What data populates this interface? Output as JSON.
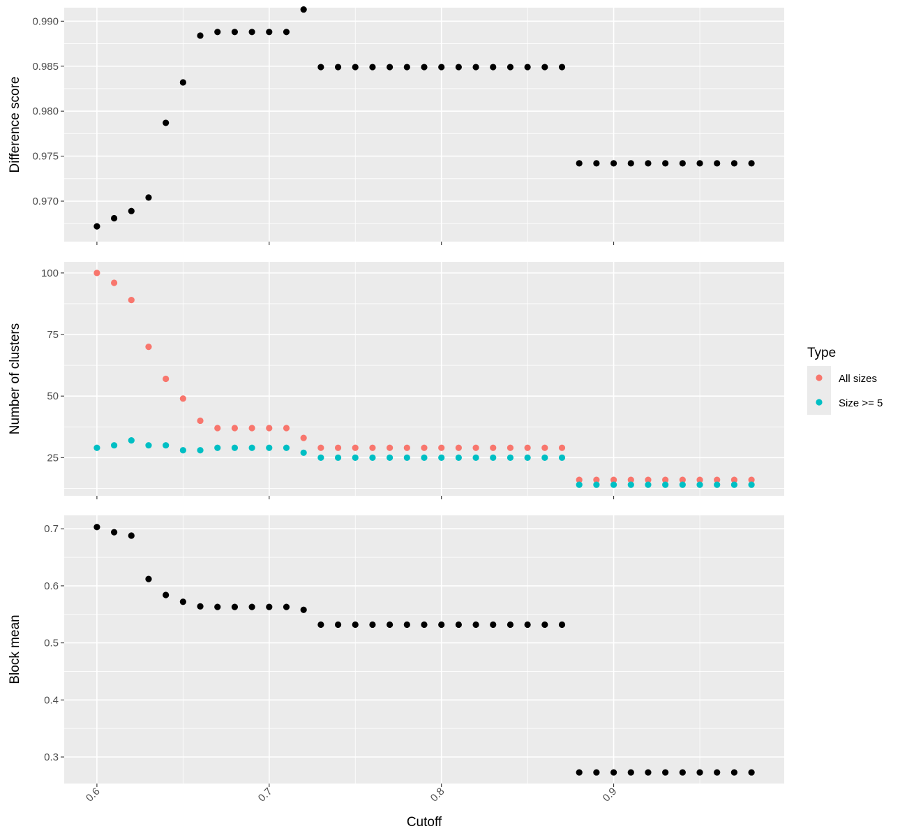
{
  "chart_data": [
    {
      "type": "scatter",
      "ylabel": "Difference score",
      "ylim": [
        0.9655,
        0.9915
      ],
      "yticks": [
        "0.970",
        "0.975",
        "0.980",
        "0.985",
        "0.990"
      ],
      "xlim": [
        0.581,
        0.999
      ],
      "x_minor_grid": true,
      "y_minor_grid": true,
      "series": [
        {
          "color": "#000000",
          "x": [
            0.6,
            0.61,
            0.62,
            0.63,
            0.64,
            0.65,
            0.66,
            0.67,
            0.68,
            0.69,
            0.7,
            0.71,
            0.72,
            0.73,
            0.74,
            0.75,
            0.76,
            0.77,
            0.78,
            0.79,
            0.8,
            0.81,
            0.82,
            0.83,
            0.84,
            0.85,
            0.86,
            0.87,
            0.88,
            0.89,
            0.9,
            0.91,
            0.92,
            0.93,
            0.94,
            0.95,
            0.96,
            0.97,
            0.98
          ],
          "y": [
            0.9672,
            0.9681,
            0.9689,
            0.9704,
            0.9787,
            0.9832,
            0.9884,
            0.9888,
            0.9888,
            0.9888,
            0.9888,
            0.9888,
            0.9913,
            0.9849,
            0.9849,
            0.9849,
            0.9849,
            0.9849,
            0.9849,
            0.9849,
            0.9849,
            0.9849,
            0.9849,
            0.9849,
            0.9849,
            0.9849,
            0.9849,
            0.9849,
            0.9742,
            0.9742,
            0.9742,
            0.9742,
            0.9742,
            0.9742,
            0.9742,
            0.9742,
            0.9742,
            0.9742,
            0.9742
          ]
        }
      ]
    },
    {
      "type": "scatter",
      "ylabel": "Number of clusters",
      "ylim": [
        9.5,
        104.5
      ],
      "yticks": [
        "25",
        "50",
        "75",
        "100"
      ],
      "xlim": [
        0.581,
        0.999
      ],
      "x_minor_grid": true,
      "y_minor_grid": true,
      "series": [
        {
          "name": "All sizes",
          "color": "#F8766D",
          "x": [
            0.6,
            0.61,
            0.62,
            0.63,
            0.64,
            0.65,
            0.66,
            0.67,
            0.68,
            0.69,
            0.7,
            0.71,
            0.72,
            0.73,
            0.74,
            0.75,
            0.76,
            0.77,
            0.78,
            0.79,
            0.8,
            0.81,
            0.82,
            0.83,
            0.84,
            0.85,
            0.86,
            0.87,
            0.88,
            0.89,
            0.9,
            0.91,
            0.92,
            0.93,
            0.94,
            0.95,
            0.96,
            0.97,
            0.98
          ],
          "y": [
            100,
            96,
            89,
            70,
            57,
            49,
            40,
            37,
            37,
            37,
            37,
            37,
            33,
            29,
            29,
            29,
            29,
            29,
            29,
            29,
            29,
            29,
            29,
            29,
            29,
            29,
            29,
            29,
            16,
            16,
            16,
            16,
            16,
            16,
            16,
            16,
            16,
            16,
            16
          ]
        },
        {
          "name": "Size >= 5",
          "color": "#00BFC4",
          "x": [
            0.6,
            0.61,
            0.62,
            0.63,
            0.64,
            0.65,
            0.66,
            0.67,
            0.68,
            0.69,
            0.7,
            0.71,
            0.72,
            0.73,
            0.74,
            0.75,
            0.76,
            0.77,
            0.78,
            0.79,
            0.8,
            0.81,
            0.82,
            0.83,
            0.84,
            0.85,
            0.86,
            0.87,
            0.88,
            0.89,
            0.9,
            0.91,
            0.92,
            0.93,
            0.94,
            0.95,
            0.96,
            0.97,
            0.98
          ],
          "y": [
            29,
            30,
            32,
            30,
            30,
            28,
            28,
            29,
            29,
            29,
            29,
            29,
            27,
            25,
            25,
            25,
            25,
            25,
            25,
            25,
            25,
            25,
            25,
            25,
            25,
            25,
            25,
            25,
            14,
            14,
            14,
            14,
            14,
            14,
            14,
            14,
            14,
            14,
            14
          ]
        }
      ]
    },
    {
      "type": "scatter",
      "ylabel": "Block mean",
      "ylim": [
        0.2535,
        0.7235
      ],
      "yticks": [
        "0.3",
        "0.4",
        "0.5",
        "0.6",
        "0.7"
      ],
      "xlim": [
        0.581,
        0.999
      ],
      "xticks": [
        "0.6",
        "0.7",
        "0.8",
        "0.9"
      ],
      "xlabel": "Cutoff",
      "x_minor_grid": true,
      "y_minor_grid": true,
      "series": [
        {
          "color": "#000000",
          "x": [
            0.6,
            0.61,
            0.62,
            0.63,
            0.64,
            0.65,
            0.66,
            0.67,
            0.68,
            0.69,
            0.7,
            0.71,
            0.72,
            0.73,
            0.74,
            0.75,
            0.76,
            0.77,
            0.78,
            0.79,
            0.8,
            0.81,
            0.82,
            0.83,
            0.84,
            0.85,
            0.86,
            0.87,
            0.88,
            0.89,
            0.9,
            0.91,
            0.92,
            0.93,
            0.94,
            0.95,
            0.96,
            0.97,
            0.98
          ],
          "y": [
            0.703,
            0.694,
            0.688,
            0.612,
            0.584,
            0.572,
            0.564,
            0.563,
            0.563,
            0.563,
            0.563,
            0.563,
            0.558,
            0.532,
            0.532,
            0.532,
            0.532,
            0.532,
            0.532,
            0.532,
            0.532,
            0.532,
            0.532,
            0.532,
            0.532,
            0.532,
            0.532,
            0.532,
            0.273,
            0.273,
            0.273,
            0.273,
            0.273,
            0.273,
            0.273,
            0.273,
            0.273,
            0.273,
            0.273
          ]
        }
      ]
    }
  ],
  "legend": {
    "title": "Type",
    "items": [
      {
        "label": "All sizes",
        "color": "#F8766D"
      },
      {
        "label": "Size >= 5",
        "color": "#00BFC4"
      }
    ]
  }
}
